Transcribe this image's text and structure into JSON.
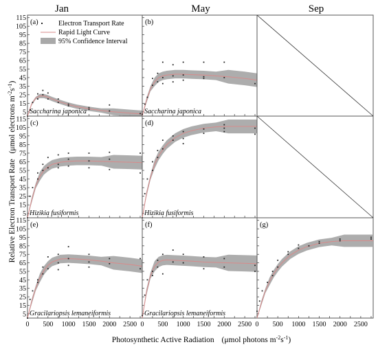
{
  "columns": [
    "Jan",
    "May",
    "Sep"
  ],
  "xlabel": "Photosynthetic Active Radiation",
  "xlabel_unit": "(μmol photons m",
  "xlabel_sup1": "-2",
  "xlabel_s": "s",
  "xlabel_sup2": "-1",
  "xlabel_close": ")",
  "ylabel_main": "Relative Electron Transport Rate",
  "ylabel_unit": "(μmol electrons m",
  "ylabel_sup1": "-2",
  "ylabel_s": "s",
  "ylabel_sup2": "-1",
  "ylabel_close": ")",
  "legend": {
    "etr": "Electron Transport Rate",
    "rlc": "Rapid Light Curve",
    "ci": "95% Confidence Interval"
  },
  "colors": {
    "ci_fill": "#a9a9a9",
    "curve": "#d98a8a",
    "points": "#222222",
    "frame": "#555555"
  },
  "chart_data": {
    "type": "scatter",
    "x_ticks": [
      0,
      250,
      500,
      750,
      1000,
      1250,
      1500,
      1750,
      2000,
      2250,
      2500,
      2750
    ],
    "y_ticks": [
      5,
      15,
      25,
      35,
      45,
      55,
      65,
      75,
      85,
      95,
      105,
      115
    ],
    "xlim": [
      0,
      2800
    ],
    "ylim": [
      0,
      118
    ],
    "panels": [
      {
        "id": "a",
        "label": "(a)",
        "row": 0,
        "col": 0,
        "species": "Saccharina japonica",
        "xlim": [
          0,
          2800
        ],
        "curve": {
          "x": [
            0,
            100,
            200,
            300,
            400,
            500,
            600,
            800,
            1000,
            1200,
            1500,
            1800,
            2100,
            2500,
            2800
          ],
          "y": [
            0,
            14,
            21,
            23.5,
            23.5,
            22,
            20,
            16.5,
            13.5,
            11,
            8.5,
            6.5,
            5,
            3.5,
            2.5
          ]
        },
        "ci_half": 2.5,
        "points": [
          [
            0,
            0
          ],
          [
            62,
            7
          ],
          [
            125,
            16
          ],
          [
            250,
            26
          ],
          [
            250,
            20
          ],
          [
            375,
            30
          ],
          [
            375,
            25
          ],
          [
            500,
            27
          ],
          [
            500,
            20
          ],
          [
            750,
            20
          ],
          [
            750,
            16
          ],
          [
            1000,
            14
          ],
          [
            1000,
            12
          ],
          [
            1500,
            10
          ],
          [
            1500,
            8
          ],
          [
            2000,
            13
          ],
          [
            2000,
            6
          ],
          [
            2750,
            3
          ]
        ]
      },
      {
        "id": "b",
        "label": "(b)",
        "row": 0,
        "col": 1,
        "species": "Saccharina japonica",
        "xlim": [
          0,
          2800
        ],
        "curve": {
          "x": [
            0,
            100,
            200,
            300,
            400,
            500,
            600,
            800,
            1000,
            1200,
            1500,
            1800,
            2100,
            2500,
            2800
          ],
          "y": [
            0,
            18,
            32,
            40,
            45,
            47,
            48,
            49,
            49,
            48.5,
            48,
            47,
            46,
            44,
            42
          ]
        },
        "ci_half": 5,
        "points": [
          [
            0,
            2
          ],
          [
            62,
            14
          ],
          [
            125,
            22
          ],
          [
            250,
            44
          ],
          [
            250,
            36
          ],
          [
            375,
            50
          ],
          [
            375,
            40
          ],
          [
            500,
            63
          ],
          [
            500,
            45
          ],
          [
            500,
            38
          ],
          [
            750,
            60
          ],
          [
            750,
            47
          ],
          [
            750,
            40
          ],
          [
            1000,
            63
          ],
          [
            1000,
            48
          ],
          [
            1000,
            42
          ],
          [
            1500,
            63
          ],
          [
            1500,
            46
          ],
          [
            1500,
            44
          ],
          [
            2000,
            63
          ],
          [
            2000,
            45
          ],
          [
            2750,
            38
          ]
        ]
      },
      {
        "id": "c",
        "label": "(c)",
        "row": 1,
        "col": 0,
        "species": "Hizikia fusiformis",
        "xlim": [
          0,
          2800
        ],
        "curve": {
          "x": [
            0,
            100,
            200,
            300,
            400,
            500,
            600,
            800,
            1000,
            1200,
            1500,
            1800,
            2100,
            2500,
            2800
          ],
          "y": [
            0,
            20,
            37,
            48,
            55,
            59,
            62,
            64.5,
            65.5,
            66,
            66,
            65.5,
            65,
            64.5,
            64
          ]
        },
        "ci_half": 5,
        "points": [
          [
            0,
            0
          ],
          [
            62,
            25
          ],
          [
            125,
            35
          ],
          [
            250,
            52
          ],
          [
            250,
            45
          ],
          [
            375,
            62
          ],
          [
            375,
            55
          ],
          [
            500,
            70
          ],
          [
            500,
            58
          ],
          [
            750,
            73
          ],
          [
            750,
            62
          ],
          [
            750,
            58
          ],
          [
            1000,
            75
          ],
          [
            1000,
            68
          ],
          [
            1000,
            60
          ],
          [
            1500,
            75
          ],
          [
            1500,
            66
          ],
          [
            1500,
            58
          ],
          [
            2000,
            76
          ],
          [
            2000,
            68
          ],
          [
            2000,
            56
          ],
          [
            2750,
            75
          ],
          [
            2750,
            52
          ]
        ]
      },
      {
        "id": "d",
        "label": "(d)",
        "row": 1,
        "col": 1,
        "species": "Hizikia fusiformis",
        "xlim": [
          0,
          2800
        ],
        "curve": {
          "x": [
            0,
            100,
            200,
            300,
            400,
            500,
            600,
            800,
            1000,
            1200,
            1500,
            1800,
            2100,
            2500,
            2800
          ],
          "y": [
            0,
            27,
            47,
            62,
            72,
            79,
            85,
            93,
            98,
            101,
            104,
            105.5,
            106,
            106,
            106
          ]
        },
        "ci_half": 5,
        "points": [
          [
            0,
            0
          ],
          [
            62,
            28
          ],
          [
            125,
            45
          ],
          [
            250,
            65
          ],
          [
            250,
            55
          ],
          [
            375,
            78
          ],
          [
            375,
            70
          ],
          [
            500,
            90
          ],
          [
            500,
            80
          ],
          [
            750,
            95
          ],
          [
            750,
            90
          ],
          [
            1000,
            100
          ],
          [
            1000,
            92
          ],
          [
            1000,
            86
          ],
          [
            1500,
            103
          ],
          [
            1500,
            98
          ],
          [
            2000,
            108
          ],
          [
            2000,
            104
          ],
          [
            2000,
            100
          ],
          [
            2750,
            104
          ],
          [
            2750,
            97
          ]
        ]
      },
      {
        "id": "e",
        "label": "(e)",
        "row": 2,
        "col": 0,
        "species": "Gracilariopsis lemaneiformis",
        "xlim": [
          0,
          2800
        ],
        "curve": {
          "x": [
            0,
            100,
            200,
            300,
            400,
            500,
            600,
            800,
            1000,
            1200,
            1500,
            1800,
            2100,
            2500,
            2800
          ],
          "y": [
            0,
            19,
            35,
            47,
            56,
            62,
            66,
            69.5,
            70,
            69.5,
            68.5,
            67,
            65,
            63,
            61
          ]
        },
        "ci_half": 5,
        "points": [
          [
            0,
            0
          ],
          [
            62,
            22
          ],
          [
            125,
            32
          ],
          [
            250,
            45
          ],
          [
            250,
            42
          ],
          [
            375,
            60
          ],
          [
            375,
            52
          ],
          [
            500,
            72
          ],
          [
            500,
            58
          ],
          [
            750,
            75
          ],
          [
            750,
            65
          ],
          [
            750,
            57
          ],
          [
            1000,
            84
          ],
          [
            1000,
            70
          ],
          [
            1000,
            62
          ],
          [
            1500,
            75
          ],
          [
            1500,
            66
          ],
          [
            1500,
            60
          ],
          [
            2000,
            70
          ],
          [
            2000,
            64
          ],
          [
            2750,
            70
          ],
          [
            2750,
            58
          ]
        ]
      },
      {
        "id": "f",
        "label": "(f)",
        "row": 2,
        "col": 1,
        "species": "Gracilariopsis lemaneiformis",
        "xlim": [
          0,
          2800
        ],
        "curve": {
          "x": [
            0,
            100,
            200,
            300,
            400,
            500,
            600,
            800,
            1000,
            1200,
            1500,
            1800,
            2100,
            2500,
            2800
          ],
          "y": [
            0,
            30,
            50,
            61,
            66,
            68,
            68.5,
            68,
            67.5,
            67,
            66,
            65.5,
            65,
            64.5,
            64
          ]
        },
        "ci_half": 6,
        "points": [
          [
            0,
            3
          ],
          [
            62,
            27
          ],
          [
            125,
            45
          ],
          [
            250,
            55
          ],
          [
            250,
            50
          ],
          [
            375,
            68
          ],
          [
            375,
            60
          ],
          [
            500,
            75
          ],
          [
            500,
            52
          ],
          [
            750,
            80
          ],
          [
            750,
            66
          ],
          [
            1000,
            75
          ],
          [
            1000,
            65
          ],
          [
            1500,
            72
          ],
          [
            1500,
            58
          ],
          [
            2000,
            70
          ],
          [
            2000,
            60
          ],
          [
            2750,
            62
          ],
          [
            2750,
            55
          ]
        ]
      },
      {
        "id": "g",
        "label": "(g)",
        "row": 2,
        "col": 2,
        "species": "",
        "xlim": [
          0,
          2800
        ],
        "curve": {
          "x": [
            0,
            100,
            200,
            300,
            400,
            500,
            600,
            800,
            1000,
            1200,
            1500,
            1800,
            2100,
            2500,
            2800
          ],
          "y": [
            0,
            17,
            32,
            43,
            52,
            59,
            65,
            74,
            80,
            84,
            88,
            90,
            91,
            91,
            91
          ]
        },
        "ci_half": 4.5,
        "points": [
          [
            0,
            8
          ],
          [
            62,
            20
          ],
          [
            125,
            32
          ],
          [
            250,
            42
          ],
          [
            375,
            50
          ],
          [
            375,
            55
          ],
          [
            500,
            60
          ],
          [
            500,
            68
          ],
          [
            750,
            75
          ],
          [
            750,
            78
          ],
          [
            1000,
            82
          ],
          [
            1000,
            86
          ],
          [
            1250,
            85
          ],
          [
            1500,
            90
          ],
          [
            1500,
            88
          ],
          [
            2000,
            93
          ],
          [
            2000,
            91
          ],
          [
            2750,
            93
          ],
          [
            2750,
            95
          ]
        ]
      },
      {
        "id": "sep-top",
        "row": 0,
        "col": 2,
        "empty": true
      },
      {
        "id": "sep-mid",
        "row": 1,
        "col": 2,
        "empty": true
      }
    ]
  }
}
